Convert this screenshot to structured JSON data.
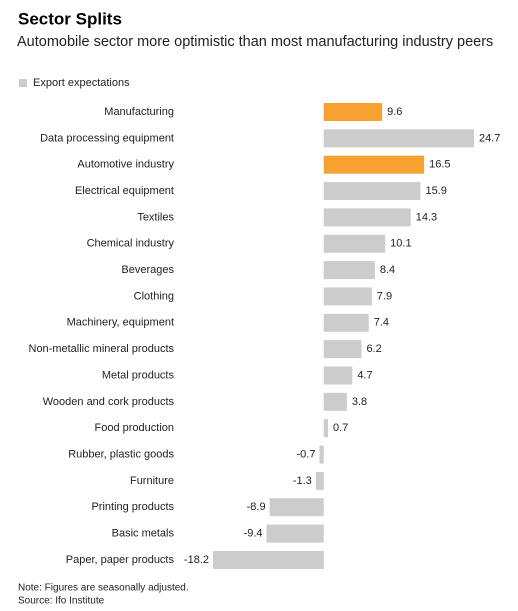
{
  "chart_data": {
    "type": "bar",
    "orientation": "horizontal",
    "title": "Sector Splits",
    "subtitle": "Automobile sector more optimistic than most manufacturing industry peers",
    "categories": [
      "Manufacturing",
      "Data processing equipment",
      "Automotive industry",
      "Electrical equipment",
      "Textiles",
      "Chemical industry",
      "Beverages",
      "Clothing",
      "Machinery, equipment",
      "Non-metallic mineral products",
      "Metal products",
      "Wooden and cork products",
      "Food production",
      "Rubber, plastic goods",
      "Furniture",
      "Printing products",
      "Basic metals",
      "Paper, paper products"
    ],
    "series": [
      {
        "name": "Export expectations",
        "color": "#cccccc",
        "values": [
          9.6,
          24.7,
          16.5,
          15.9,
          14.3,
          10.1,
          8.4,
          7.9,
          7.4,
          6.2,
          4.7,
          3.8,
          0.7,
          -0.7,
          -1.3,
          -8.9,
          -9.4,
          -18.2
        ]
      }
    ],
    "bar_colors": [
      "#f7a130",
      "#cccccc",
      "#f7a130",
      "#cccccc",
      "#cccccc",
      "#cccccc",
      "#cccccc",
      "#cccccc",
      "#cccccc",
      "#cccccc",
      "#cccccc",
      "#cccccc",
      "#cccccc",
      "#cccccc",
      "#cccccc",
      "#cccccc",
      "#cccccc",
      "#cccccc"
    ],
    "note": "Note: Figures are seasonally adjusted.",
    "source": "Source: Ifo Institute"
  }
}
